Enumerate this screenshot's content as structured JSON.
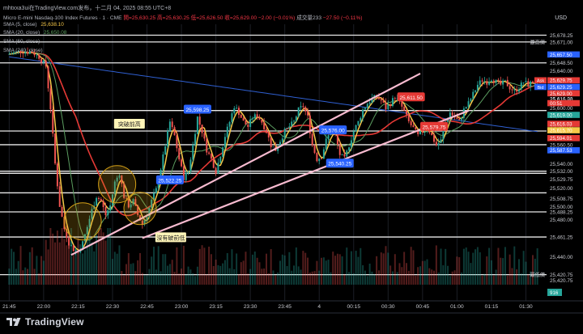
{
  "header": {
    "title": "mhtxxa3ui在TradingView.com发布，十二月 04, 2025 08:55 UTC+8",
    "symbol_line": "Micro E-mini Nasdaq-100 Index Futures · 1 · CME",
    "ohlc": {
      "open": "開=25,630.25",
      "high": "高=25,630.25",
      "low": "低=25,626.50",
      "close": "收=25,629.00",
      "change": "−2.00 (−0.01%)",
      "volume": "成交量233",
      "vol_change": "−27.50 (−0.11%)"
    },
    "currency": "USD"
  },
  "indicators": [
    {
      "label": "SMA (5, close)",
      "value": "25,638.10",
      "color": "#f7c948"
    },
    {
      "label": "SMA (20, close)",
      "value": "25,650.08",
      "color": "#5b9d60"
    },
    {
      "label": "SMA (60, close)",
      "value": "",
      "color": "#e53935"
    },
    {
      "label": "SMA (240, close)",
      "value": "",
      "color": "#2962ff"
    }
  ],
  "colors": {
    "up": "#26a69a",
    "down": "#ef5350",
    "sma5": "#f7c948",
    "sma20": "#5b9d60",
    "sma60": "#e53935",
    "sma240": "#2f5fd0",
    "trend": "#f8bbd0",
    "circle": "#d4a017"
  },
  "brand": {
    "name": "TradingView"
  },
  "chart_data": {
    "type": "candlestick",
    "ylim": [
      25410,
      25690
    ],
    "x_ticks": [
      {
        "label": "21:45",
        "t": 0
      },
      {
        "label": "22:00",
        "t": 15
      },
      {
        "label": "22:15",
        "t": 30
      },
      {
        "label": "22:30",
        "t": 45
      },
      {
        "label": "22:45",
        "t": 60
      },
      {
        "label": "23:00",
        "t": 75
      },
      {
        "label": "23:15",
        "t": 90
      },
      {
        "label": "23:30",
        "t": 105
      },
      {
        "label": "23:45",
        "t": 120
      },
      {
        "label": "4",
        "t": 135
      },
      {
        "label": "00:15",
        "t": 150
      },
      {
        "label": "00:30",
        "t": 165
      },
      {
        "label": "00:45",
        "t": 180
      },
      {
        "label": "01:00",
        "t": 195
      },
      {
        "label": "01:15",
        "t": 210
      },
      {
        "label": "01:30",
        "t": 225
      }
    ],
    "y_ticks": [
      "25,678.25",
      "25,671.00",
      "25,648.50",
      "25,640.00",
      "25,620.00",
      "25,616.03",
      "25,615.70",
      "25,600.00",
      "25,597.25",
      "25,580.00",
      "25,575.25",
      "25,560.50",
      "25,540.00",
      "25,532.00",
      "25,529.75",
      "25,520.00",
      "25,508.75",
      "25,500.00",
      "25,488.25",
      "25,480.00",
      "25,461.25",
      "25,440.00",
      "25,420.75",
      "25,420.75"
    ],
    "y_badges": [
      {
        "label": "25,657.50",
        "value": 25657.5,
        "color": "#2962ff"
      },
      {
        "label": "25,629.75",
        "value": 25629.75,
        "color": "#e53935",
        "tag": "Ask"
      },
      {
        "label": "25,629.25",
        "value": 25629.25,
        "color": "#2962ff",
        "tag": "Bid"
      },
      {
        "label": "25,629.00",
        "value": 25629.0,
        "color": "#e53935"
      },
      {
        "label": "00:51",
        "value": 25625.0,
        "color": "#e53935"
      },
      {
        "label": "25,619.00",
        "value": 25619.0,
        "color": "#26a69a"
      },
      {
        "label": "25,616.03",
        "value": 25616.03,
        "color": "#e53935"
      },
      {
        "label": "25,615.70",
        "value": 25615.7,
        "color": "#f7c948"
      },
      {
        "label": "25,594.01",
        "value": 25594.01,
        "color": "#e53935"
      },
      {
        "label": "25,587.53",
        "value": 25587.53,
        "color": "#2962ff"
      }
    ],
    "axis_tags": [
      {
        "label": "最高價",
        "value": 25671.0
      },
      {
        "label": "最低價",
        "value": 25420.75
      }
    ],
    "h_lines": [
      25678.25,
      25671.0,
      25648.5,
      25597.25,
      25575.25,
      25560.5,
      25532.0,
      25529.75,
      25508.75,
      25488.25,
      25461.25,
      25420.75
    ],
    "price_labels": [
      {
        "text": "25,598.25",
        "t": 82,
        "value": 25598.25,
        "color": "#2962ff"
      },
      {
        "text": "25,522.25",
        "t": 70,
        "value": 25522.25,
        "color": "#2962ff"
      },
      {
        "text": "25,576.00",
        "t": 141,
        "value": 25576.0,
        "color": "#2962ff"
      },
      {
        "text": "25,540.25",
        "t": 144,
        "value": 25540.25,
        "color": "#2962ff"
      },
      {
        "text": "25,611.50",
        "t": 175,
        "value": 25611.5,
        "color": "#e53935"
      },
      {
        "text": "25,579.75",
        "t": 185,
        "value": 25579.75,
        "color": "#e53935"
      }
    ],
    "annotations": [
      {
        "text": "突破前高",
        "t": 52,
        "value": 25583
      },
      {
        "text": "沒有破前低",
        "t": 70,
        "value": 25461
      }
    ],
    "trendlines": [
      [
        {
          "t": 27,
          "v": 25442
        },
        {
          "t": 179,
          "v": 25637
        }
      ],
      [
        {
          "t": 58,
          "v": 25460
        },
        {
          "t": 200,
          "v": 25597
        }
      ]
    ],
    "circles": [
      {
        "t": 32,
        "v": 25478,
        "r": 23
      },
      {
        "t": 47,
        "v": 25518,
        "r": 23
      },
      {
        "t": 57,
        "v": 25492,
        "r": 20
      }
    ],
    "volume_ticks": [
      "916"
    ],
    "path": [
      [
        0,
        25658
      ],
      [
        5,
        25661
      ],
      [
        10,
        25660
      ],
      [
        13,
        25655
      ],
      [
        16,
        25645
      ],
      [
        18,
        25600
      ],
      [
        20,
        25540
      ],
      [
        22,
        25495
      ],
      [
        24,
        25470
      ],
      [
        26,
        25455
      ],
      [
        28,
        25448
      ],
      [
        30,
        25445
      ],
      [
        32,
        25455
      ],
      [
        34,
        25472
      ],
      [
        36,
        25490
      ],
      [
        38,
        25505
      ],
      [
        40,
        25500
      ],
      [
        42,
        25485
      ],
      [
        44,
        25495
      ],
      [
        46,
        25520
      ],
      [
        48,
        25530
      ],
      [
        50,
        25505
      ],
      [
        52,
        25495
      ],
      [
        54,
        25500
      ],
      [
        56,
        25485
      ],
      [
        58,
        25475
      ],
      [
        60,
        25485
      ],
      [
        62,
        25500
      ],
      [
        64,
        25512
      ],
      [
        66,
        25535
      ],
      [
        68,
        25560
      ],
      [
        70,
        25585
      ],
      [
        72,
        25570
      ],
      [
        74,
        25545
      ],
      [
        76,
        25525
      ],
      [
        78,
        25532
      ],
      [
        80,
        25560
      ],
      [
        82,
        25590
      ],
      [
        84,
        25575
      ],
      [
        86,
        25555
      ],
      [
        88,
        25545
      ],
      [
        90,
        25532
      ],
      [
        92,
        25550
      ],
      [
        94,
        25570
      ],
      [
        96,
        25585
      ],
      [
        98,
        25602
      ],
      [
        100,
        25595
      ],
      [
        102,
        25585
      ],
      [
        104,
        25580
      ],
      [
        106,
        25590
      ],
      [
        108,
        25592
      ],
      [
        110,
        25585
      ],
      [
        112,
        25575
      ],
      [
        114,
        25560
      ],
      [
        116,
        25555
      ],
      [
        118,
        25565
      ],
      [
        120,
        25575
      ],
      [
        122,
        25580
      ],
      [
        124,
        25585
      ],
      [
        126,
        25598
      ],
      [
        128,
        25602
      ],
      [
        130,
        25590
      ],
      [
        132,
        25560
      ],
      [
        134,
        25545
      ],
      [
        136,
        25548
      ],
      [
        138,
        25565
      ],
      [
        140,
        25575
      ],
      [
        142,
        25570
      ],
      [
        144,
        25550
      ],
      [
        146,
        25545
      ],
      [
        148,
        25560
      ],
      [
        150,
        25575
      ],
      [
        152,
        25585
      ],
      [
        154,
        25598
      ],
      [
        156,
        25605
      ],
      [
        158,
        25610
      ],
      [
        160,
        25612
      ],
      [
        162,
        25608
      ],
      [
        164,
        25600
      ],
      [
        166,
        25605
      ],
      [
        168,
        25612
      ],
      [
        170,
        25606
      ],
      [
        172,
        25596
      ],
      [
        174,
        25585
      ],
      [
        176,
        25578
      ],
      [
        178,
        25570
      ],
      [
        180,
        25575
      ],
      [
        182,
        25580
      ],
      [
        184,
        25570
      ],
      [
        186,
        25560
      ],
      [
        188,
        25565
      ],
      [
        190,
        25585
      ],
      [
        192,
        25595
      ],
      [
        194,
        25590
      ],
      [
        196,
        25585
      ],
      [
        198,
        25598
      ],
      [
        200,
        25605
      ],
      [
        202,
        25615
      ],
      [
        204,
        25625
      ],
      [
        206,
        25630
      ],
      [
        208,
        25628
      ],
      [
        210,
        25632
      ],
      [
        212,
        25628
      ],
      [
        214,
        25625
      ],
      [
        216,
        25628
      ],
      [
        218,
        25622
      ],
      [
        220,
        25618
      ],
      [
        222,
        25622
      ],
      [
        224,
        25628
      ],
      [
        226,
        25625
      ],
      [
        228,
        25628
      ],
      [
        230,
        25629
      ]
    ]
  }
}
